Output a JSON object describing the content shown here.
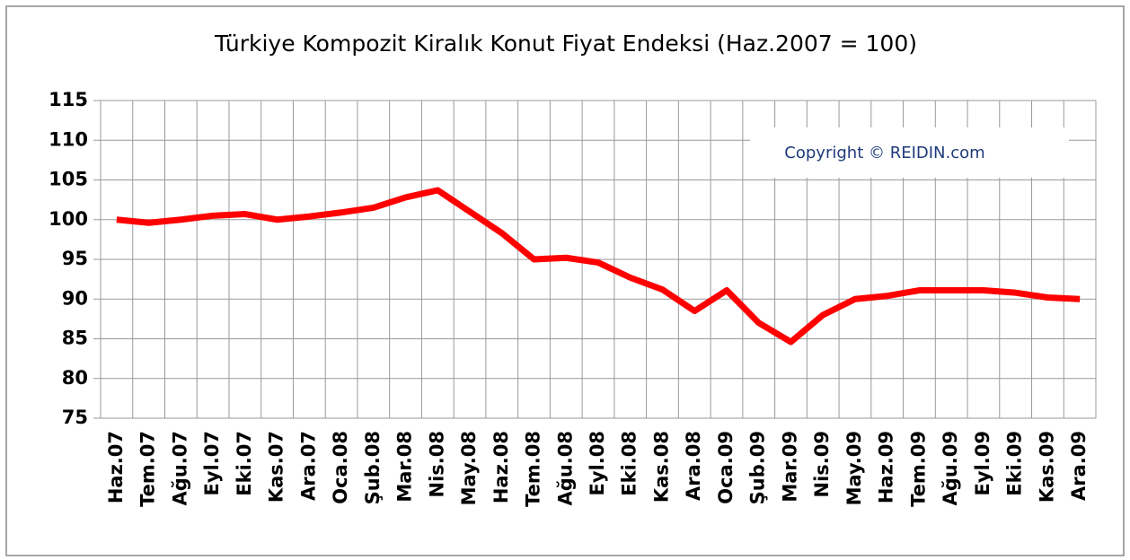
{
  "chart_data": {
    "type": "line",
    "title": "Türkiye Kompozit Kiralık Konut Fiyat Endeksi (Haz.2007 = 100)",
    "annotation": "Copyright © REIDIN.com",
    "categories": [
      "Haz.07",
      "Tem.07",
      "Ağu.07",
      "Eyl.07",
      "Eki.07",
      "Kas.07",
      "Ara.07",
      "Oca.08",
      "Şub.08",
      "Mar.08",
      "Nis.08",
      "May.08",
      "Haz.08",
      "Tem.08",
      "Ağu.08",
      "Eyl.08",
      "Eki.08",
      "Kas.08",
      "Ara.08",
      "Oca.09",
      "Şub.09",
      "Mar.09",
      "Nis.09",
      "May.09",
      "Haz.09",
      "Tem.09",
      "Ağu.09",
      "Eyl.09",
      "Eki.09",
      "Kas.09",
      "Ara.09"
    ],
    "series": [
      {
        "color": "#ff0000",
        "values": [
          100,
          99.6,
          100,
          100.5,
          100.7,
          100,
          100.4,
          100.9,
          101.5,
          102.8,
          103.7,
          101,
          98.3,
          95,
          95.2,
          94.6,
          92.7,
          91.2,
          88.5,
          91.1,
          87,
          84.6,
          88,
          90,
          90.4,
          91.1,
          91.1,
          91.1,
          90.8,
          90.2,
          90
        ]
      }
    ],
    "ylim": [
      75,
      115
    ],
    "yticks": [
      75,
      80,
      85,
      90,
      95,
      100,
      105,
      110,
      115
    ],
    "grid": true
  }
}
